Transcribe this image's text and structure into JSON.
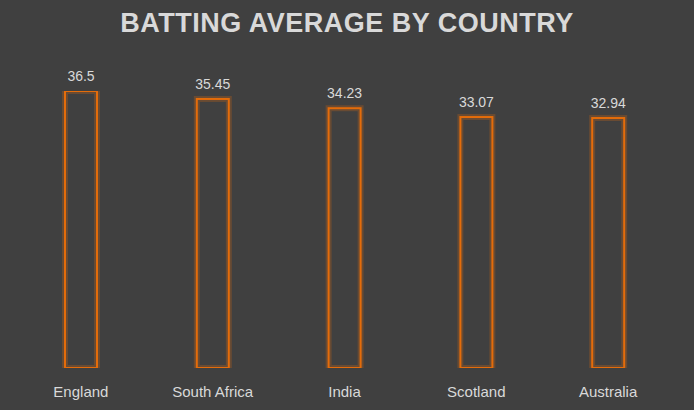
{
  "chart_data": {
    "type": "bar",
    "title": "BATTING AVERAGE BY COUNTRY",
    "categories": [
      "England",
      "South Africa",
      "India",
      "Scotland",
      "Australia"
    ],
    "values": [
      36.5,
      35.45,
      34.23,
      33.07,
      32.94
    ],
    "color": "#e46c0a",
    "data_labels": true,
    "tick_labels": "x",
    "grid": false
  }
}
